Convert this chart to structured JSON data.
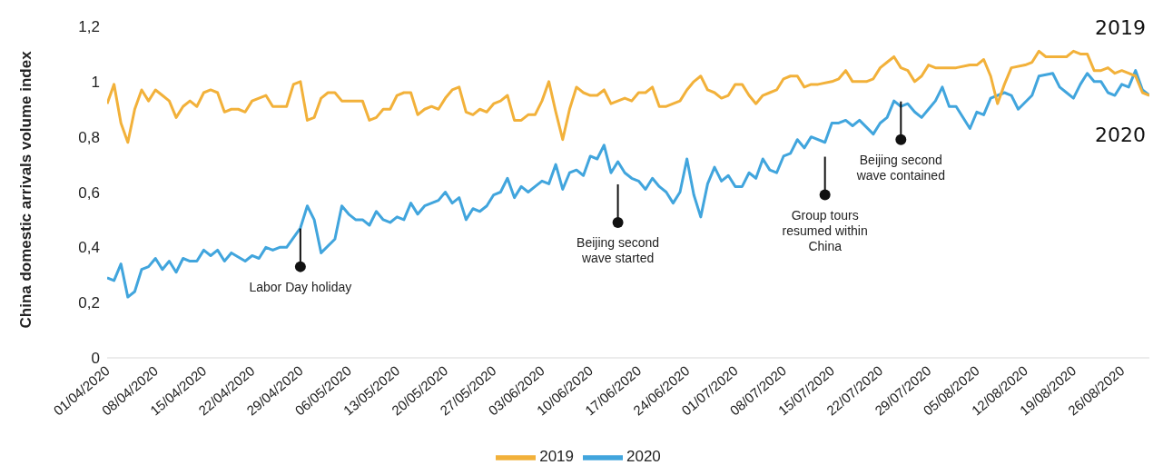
{
  "chart_data": {
    "type": "line",
    "ylabel": "China domestic arrivals volume index",
    "xlim": [
      "2020-04-01",
      "2020-08-30"
    ],
    "xticks": [
      {
        "value": "2020-04-01",
        "label": "01/04/2020"
      },
      {
        "value": "2020-04-08",
        "label": "08/04/2020"
      },
      {
        "value": "2020-04-15",
        "label": "15/04/2020"
      },
      {
        "value": "2020-04-22",
        "label": "22/04/2020"
      },
      {
        "value": "2020-04-29",
        "label": "29/04/2020"
      },
      {
        "value": "2020-05-06",
        "label": "06/05/2020"
      },
      {
        "value": "2020-05-13",
        "label": "13/05/2020"
      },
      {
        "value": "2020-05-20",
        "label": "20/05/2020"
      },
      {
        "value": "2020-05-27",
        "label": "27/05/2020"
      },
      {
        "value": "2020-06-03",
        "label": "03/06/2020"
      },
      {
        "value": "2020-06-10",
        "label": "10/06/2020"
      },
      {
        "value": "2020-06-17",
        "label": "17/06/2020"
      },
      {
        "value": "2020-06-24",
        "label": "24/06/2020"
      },
      {
        "value": "2020-07-01",
        "label": "01/07/2020"
      },
      {
        "value": "2020-07-08",
        "label": "08/07/2020"
      },
      {
        "value": "2020-07-15",
        "label": "15/07/2020"
      },
      {
        "value": "2020-07-22",
        "label": "22/07/2020"
      },
      {
        "value": "2020-07-29",
        "label": "29/07/2020"
      },
      {
        "value": "2020-08-05",
        "label": "05/08/2020"
      },
      {
        "value": "2020-08-12",
        "label": "12/08/2020"
      },
      {
        "value": "2020-08-19",
        "label": "19/08/2020"
      },
      {
        "value": "2020-08-26",
        "label": "26/08/2020"
      }
    ],
    "ylim": [
      0,
      1.2
    ],
    "yticks": [
      0,
      {
        "value": 0.2,
        "label": "0,2"
      },
      {
        "value": 0.4,
        "label": "0,4"
      },
      {
        "value": 0.6,
        "label": "0,6"
      },
      {
        "value": 0.8,
        "label": "0,8"
      },
      1,
      {
        "value": 1.2,
        "label": "1,2"
      }
    ],
    "grid": false,
    "legend": "bottom",
    "marker": "none",
    "line_style": "solid",
    "series": [
      {
        "name": "2020",
        "color": "#41a5dd",
        "x": [
          "2020-04-01",
          "2020-04-02",
          "2020-04-03",
          "2020-04-04",
          "2020-04-05",
          "2020-04-06",
          "2020-04-07",
          "2020-04-08",
          "2020-04-09",
          "2020-04-10",
          "2020-04-11",
          "2020-04-12",
          "2020-04-13",
          "2020-04-14",
          "2020-04-15",
          "2020-04-16",
          "2020-04-17",
          "2020-04-18",
          "2020-04-19",
          "2020-04-21",
          "2020-04-22",
          "2020-04-23",
          "2020-04-24",
          "2020-04-25",
          "2020-04-26",
          "2020-04-27",
          "2020-04-29",
          "2020-04-30",
          "2020-05-01",
          "2020-05-02",
          "2020-05-04",
          "2020-05-05",
          "2020-05-06",
          "2020-05-07",
          "2020-05-08",
          "2020-05-09",
          "2020-05-10",
          "2020-05-11",
          "2020-05-12",
          "2020-05-13",
          "2020-05-14",
          "2020-05-15",
          "2020-05-16",
          "2020-05-17",
          "2020-05-18",
          "2020-05-19",
          "2020-05-20",
          "2020-05-21",
          "2020-05-22",
          "2020-05-23",
          "2020-05-24",
          "2020-05-25",
          "2020-05-26",
          "2020-05-27",
          "2020-05-28",
          "2020-05-29",
          "2020-05-30",
          "2020-05-31",
          "2020-06-01",
          "2020-06-02",
          "2020-06-03",
          "2020-06-04",
          "2020-06-05",
          "2020-06-06",
          "2020-06-07",
          "2020-06-08",
          "2020-06-09",
          "2020-06-10",
          "2020-06-11",
          "2020-06-12",
          "2020-06-13",
          "2020-06-14",
          "2020-06-15",
          "2020-06-16",
          "2020-06-17",
          "2020-06-18",
          "2020-06-19",
          "2020-06-20",
          "2020-06-21",
          "2020-06-22",
          "2020-06-23",
          "2020-06-24",
          "2020-06-25",
          "2020-06-26",
          "2020-06-27",
          "2020-06-28",
          "2020-06-29",
          "2020-06-30",
          "2020-07-01",
          "2020-07-02",
          "2020-07-03",
          "2020-07-04",
          "2020-07-05",
          "2020-07-06",
          "2020-07-07",
          "2020-07-08",
          "2020-07-09",
          "2020-07-10",
          "2020-07-11",
          "2020-07-12",
          "2020-07-14",
          "2020-07-15",
          "2020-07-16",
          "2020-07-17",
          "2020-07-18",
          "2020-07-19",
          "2020-07-21",
          "2020-07-22",
          "2020-07-23",
          "2020-07-24",
          "2020-07-25",
          "2020-07-26",
          "2020-07-27",
          "2020-07-28",
          "2020-07-29",
          "2020-07-30",
          "2020-07-31",
          "2020-08-01",
          "2020-08-02",
          "2020-08-04",
          "2020-08-05",
          "2020-08-06",
          "2020-08-07",
          "2020-08-09",
          "2020-08-10",
          "2020-08-11",
          "2020-08-13",
          "2020-08-14",
          "2020-08-16",
          "2020-08-17",
          "2020-08-18",
          "2020-08-19",
          "2020-08-20",
          "2020-08-21",
          "2020-08-22",
          "2020-08-23",
          "2020-08-24",
          "2020-08-25",
          "2020-08-26",
          "2020-08-27",
          "2020-08-28",
          "2020-08-29",
          "2020-08-30"
        ],
        "values": [
          0.29,
          0.28,
          0.34,
          0.22,
          0.24,
          0.32,
          0.33,
          0.36,
          0.32,
          0.35,
          0.31,
          0.36,
          0.35,
          0.35,
          0.39,
          0.37,
          0.39,
          0.35,
          0.38,
          0.35,
          0.37,
          0.36,
          0.4,
          0.39,
          0.4,
          0.4,
          0.47,
          0.55,
          0.5,
          0.38,
          0.43,
          0.55,
          0.52,
          0.5,
          0.5,
          0.48,
          0.53,
          0.5,
          0.49,
          0.51,
          0.5,
          0.56,
          0.52,
          0.55,
          0.56,
          0.57,
          0.6,
          0.56,
          0.58,
          0.5,
          0.54,
          0.53,
          0.55,
          0.59,
          0.6,
          0.65,
          0.58,
          0.62,
          0.6,
          0.62,
          0.64,
          0.63,
          0.7,
          0.61,
          0.67,
          0.68,
          0.66,
          0.73,
          0.72,
          0.77,
          0.67,
          0.71,
          0.67,
          0.65,
          0.64,
          0.61,
          0.65,
          0.62,
          0.6,
          0.56,
          0.6,
          0.72,
          0.59,
          0.51,
          0.63,
          0.69,
          0.64,
          0.66,
          0.62,
          0.62,
          0.67,
          0.65,
          0.72,
          0.68,
          0.67,
          0.73,
          0.74,
          0.79,
          0.76,
          0.8,
          0.78,
          0.85,
          0.85,
          0.86,
          0.84,
          0.86,
          0.81,
          0.85,
          0.87,
          0.93,
          0.91,
          0.92,
          0.89,
          0.87,
          0.9,
          0.93,
          0.98,
          0.91,
          0.91,
          0.83,
          0.89,
          0.88,
          0.94,
          0.96,
          0.95,
          0.9,
          0.95,
          1.02,
          1.03,
          0.98,
          0.96,
          0.94,
          0.99,
          1.03,
          1.0,
          1.0,
          0.96,
          0.95,
          0.99,
          0.98,
          1.04,
          0.97,
          0.95
        ]
      },
      {
        "name": "2019",
        "color": "#f2b13a",
        "x": [
          "2020-04-01",
          "2020-04-02",
          "2020-04-03",
          "2020-04-04",
          "2020-04-05",
          "2020-04-06",
          "2020-04-07",
          "2020-04-08",
          "2020-04-09",
          "2020-04-10",
          "2020-04-11",
          "2020-04-12",
          "2020-04-13",
          "2020-04-14",
          "2020-04-15",
          "2020-04-16",
          "2020-04-17",
          "2020-04-18",
          "2020-04-19",
          "2020-04-20",
          "2020-04-21",
          "2020-04-22",
          "2020-04-23",
          "2020-04-24",
          "2020-04-25",
          "2020-04-26",
          "2020-04-27",
          "2020-04-28",
          "2020-04-29",
          "2020-04-30",
          "2020-05-01",
          "2020-05-02",
          "2020-05-03",
          "2020-05-04",
          "2020-05-05",
          "2020-05-06",
          "2020-05-07",
          "2020-05-08",
          "2020-05-09",
          "2020-05-10",
          "2020-05-11",
          "2020-05-12",
          "2020-05-13",
          "2020-05-14",
          "2020-05-15",
          "2020-05-16",
          "2020-05-17",
          "2020-05-18",
          "2020-05-19",
          "2020-05-20",
          "2020-05-21",
          "2020-05-22",
          "2020-05-23",
          "2020-05-24",
          "2020-05-25",
          "2020-05-26",
          "2020-05-27",
          "2020-05-28",
          "2020-05-29",
          "2020-05-30",
          "2020-05-31",
          "2020-06-01",
          "2020-06-02",
          "2020-06-03",
          "2020-06-04",
          "2020-06-05",
          "2020-06-06",
          "2020-06-07",
          "2020-06-08",
          "2020-06-09",
          "2020-06-10",
          "2020-06-11",
          "2020-06-12",
          "2020-06-13",
          "2020-06-14",
          "2020-06-15",
          "2020-06-16",
          "2020-06-17",
          "2020-06-18",
          "2020-06-19",
          "2020-06-20",
          "2020-06-21",
          "2020-06-22",
          "2020-06-23",
          "2020-06-24",
          "2020-06-25",
          "2020-06-26",
          "2020-06-27",
          "2020-06-28",
          "2020-06-29",
          "2020-06-30",
          "2020-07-01",
          "2020-07-02",
          "2020-07-03",
          "2020-07-04",
          "2020-07-05",
          "2020-07-06",
          "2020-07-07",
          "2020-07-08",
          "2020-07-09",
          "2020-07-10",
          "2020-07-11",
          "2020-07-12",
          "2020-07-13",
          "2020-07-15",
          "2020-07-16",
          "2020-07-17",
          "2020-07-18",
          "2020-07-20",
          "2020-07-21",
          "2020-07-22",
          "2020-07-23",
          "2020-07-24",
          "2020-07-25",
          "2020-07-26",
          "2020-07-27",
          "2020-07-28",
          "2020-07-29",
          "2020-07-30",
          "2020-08-01",
          "2020-08-02",
          "2020-08-04",
          "2020-08-05",
          "2020-08-06",
          "2020-08-07",
          "2020-08-08",
          "2020-08-09",
          "2020-08-10",
          "2020-08-12",
          "2020-08-13",
          "2020-08-14",
          "2020-08-15",
          "2020-08-16",
          "2020-08-18",
          "2020-08-19",
          "2020-08-20",
          "2020-08-21",
          "2020-08-22",
          "2020-08-23",
          "2020-08-24",
          "2020-08-25",
          "2020-08-26",
          "2020-08-27",
          "2020-08-28",
          "2020-08-29",
          "2020-08-30"
        ],
        "values": [
          0.92,
          0.99,
          0.85,
          0.78,
          0.9,
          0.97,
          0.93,
          0.97,
          0.95,
          0.93,
          0.87,
          0.91,
          0.93,
          0.91,
          0.96,
          0.97,
          0.96,
          0.89,
          0.9,
          0.9,
          0.89,
          0.93,
          0.94,
          0.95,
          0.91,
          0.91,
          0.91,
          0.99,
          1.0,
          0.86,
          0.87,
          0.94,
          0.96,
          0.96,
          0.93,
          0.93,
          0.93,
          0.93,
          0.86,
          0.87,
          0.9,
          0.9,
          0.95,
          0.96,
          0.96,
          0.88,
          0.9,
          0.91,
          0.9,
          0.94,
          0.97,
          0.98,
          0.89,
          0.88,
          0.9,
          0.89,
          0.92,
          0.93,
          0.95,
          0.86,
          0.86,
          0.88,
          0.88,
          0.93,
          1.0,
          0.89,
          0.79,
          0.9,
          0.98,
          0.96,
          0.95,
          0.95,
          0.97,
          0.92,
          0.93,
          0.94,
          0.93,
          0.96,
          0.96,
          0.98,
          0.91,
          0.91,
          0.92,
          0.93,
          0.97,
          1.0,
          1.02,
          0.97,
          0.96,
          0.94,
          0.95,
          0.99,
          0.99,
          0.95,
          0.92,
          0.95,
          0.96,
          0.97,
          1.01,
          1.02,
          1.02,
          0.98,
          0.99,
          0.99,
          1.0,
          1.01,
          1.04,
          1.0,
          1.0,
          1.01,
          1.05,
          1.07,
          1.09,
          1.05,
          1.04,
          1.0,
          1.02,
          1.06,
          1.05,
          1.05,
          1.05,
          1.06,
          1.06,
          1.08,
          1.02,
          0.92,
          0.99,
          1.05,
          1.06,
          1.07,
          1.11,
          1.09,
          1.09,
          1.09,
          1.11,
          1.1,
          1.1,
          1.04,
          1.04,
          1.05,
          1.03,
          1.04,
          1.03,
          1.02,
          0.96,
          0.95
        ]
      }
    ],
    "annotations": [
      {
        "text": "Labor Day holiday",
        "x": "2020-04-29",
        "y": 0.33
      },
      {
        "text": "Beijing second\nwave started",
        "x": "2020-06-14",
        "y": 0.49
      },
      {
        "text": "Group tours\nresumed within\nChina",
        "x": "2020-07-14",
        "y": 0.59
      },
      {
        "text": "Beijing second\nwave contained",
        "x": "2020-07-25",
        "y": 0.79
      }
    ]
  }
}
